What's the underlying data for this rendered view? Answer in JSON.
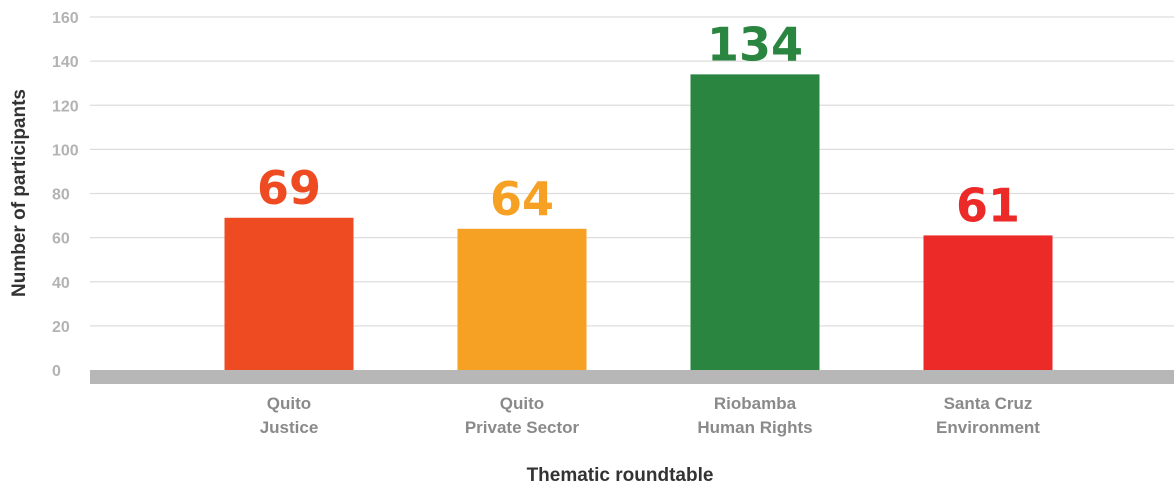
{
  "chart_data": {
    "type": "bar",
    "categories": [
      [
        "Quito",
        "Justice"
      ],
      [
        "Quito",
        "Private Sector"
      ],
      [
        "Riobamba",
        "Human Rights"
      ],
      [
        "Santa Cruz",
        "Environment"
      ]
    ],
    "values": [
      69,
      64,
      134,
      61
    ],
    "value_labels": [
      "69",
      "64",
      "134",
      "61"
    ],
    "bar_colors": [
      "#ee4b23",
      "#f6a124",
      "#2a8540",
      "#ec2a28"
    ],
    "title": "",
    "xlabel": "Thematic roundtable",
    "ylabel": "Number of participants",
    "ylim": [
      0,
      160
    ],
    "yticks": [
      0,
      20,
      40,
      60,
      80,
      100,
      120,
      140,
      160
    ],
    "grid": true,
    "legend": "none"
  },
  "colors": {
    "gridline": "#dddddd",
    "baseline": "#b7b7b7",
    "tick_text": "#b3b3b3",
    "category_text": "#8a8a8a",
    "axis_title_text": "#333333"
  }
}
